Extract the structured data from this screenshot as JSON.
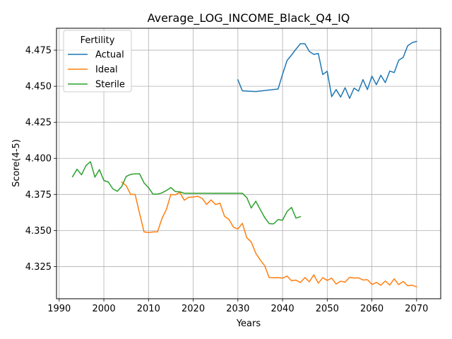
{
  "chart_data": {
    "type": "line",
    "title": "Average_LOG_INCOME_Black_Q4_IQ",
    "xlabel": "Years",
    "ylabel": "Score(4-5)",
    "xlim": [
      1989.4,
      2075.4
    ],
    "ylim": [
      4.3027,
      4.4902
    ],
    "xticks": [
      1990,
      2000,
      2010,
      2020,
      2030,
      2040,
      2050,
      2060,
      2070
    ],
    "xtick_labels": [
      "1990",
      "2000",
      "2010",
      "2020",
      "2030",
      "2040",
      "2050",
      "2060",
      "2070"
    ],
    "yticks": [
      4.325,
      4.35,
      4.375,
      4.4,
      4.425,
      4.45,
      4.475
    ],
    "ytick_labels": [
      "4.325",
      "4.350",
      "4.375",
      "4.400",
      "4.425",
      "4.450",
      "4.475"
    ],
    "grid": true,
    "legend": {
      "title": "Fertility",
      "placement": "upper-left"
    },
    "series": [
      {
        "name": "Actual",
        "color": "#1f77b4",
        "x": [
          2030,
          2031,
          2034,
          2039,
          2040,
          2041,
          2042,
          2043,
          2044,
          2045,
          2046,
          2047,
          2048,
          2049,
          2050,
          2051,
          2052,
          2053,
          2054,
          2055,
          2056,
          2057,
          2058,
          2059,
          2060,
          2061,
          2062,
          2063,
          2064,
          2065,
          2066,
          2067,
          2068,
          2069,
          2070
        ],
        "y": [
          4.4545,
          4.4468,
          4.4463,
          4.4481,
          4.4583,
          4.4678,
          4.4716,
          4.4757,
          4.4795,
          4.4795,
          4.4741,
          4.4721,
          4.4727,
          4.4581,
          4.4604,
          4.4428,
          4.4477,
          4.4425,
          4.449,
          4.4416,
          4.4487,
          4.4466,
          4.4546,
          4.4477,
          4.457,
          4.4511,
          4.4576,
          4.4525,
          4.4605,
          4.4595,
          4.468,
          4.47,
          4.478,
          4.4802,
          4.4811
        ]
      },
      {
        "name": "Ideal",
        "color": "#ff7f0e",
        "x": [
          2004,
          2005,
          2006,
          2007,
          2008,
          2009,
          2010,
          2011,
          2012,
          2013,
          2014,
          2015,
          2016,
          2017,
          2018,
          2019,
          2020,
          2021,
          2022,
          2023,
          2024,
          2025,
          2026,
          2027,
          2028,
          2029,
          2030,
          2031,
          2032,
          2033,
          2034,
          2035,
          2036,
          2037,
          2038,
          2039,
          2040,
          2041,
          2042,
          2043,
          2044,
          2045,
          2046,
          2047,
          2048,
          2049,
          2050,
          2051,
          2052,
          2053,
          2054,
          2055,
          2056,
          2057,
          2058,
          2059,
          2060,
          2061,
          2062,
          2063,
          2064,
          2065,
          2066,
          2067,
          2068,
          2069,
          2070
        ],
        "y": [
          4.3836,
          4.3811,
          4.375,
          4.375,
          4.3618,
          4.349,
          4.3486,
          4.349,
          4.349,
          4.3582,
          4.3647,
          4.375,
          4.3747,
          4.3765,
          4.371,
          4.3731,
          4.3732,
          4.3737,
          4.3723,
          4.3681,
          4.3712,
          4.368,
          4.369,
          4.3599,
          4.3577,
          4.3523,
          4.351,
          4.355,
          4.345,
          4.342,
          4.3343,
          4.3296,
          4.3256,
          4.3174,
          4.3172,
          4.3173,
          4.317,
          4.3184,
          4.3152,
          4.3156,
          4.314,
          4.3174,
          4.3145,
          4.3193,
          4.3135,
          4.3173,
          4.3154,
          4.317,
          4.3129,
          4.3149,
          4.3142,
          4.3175,
          4.3171,
          4.3172,
          4.3157,
          4.3159,
          4.3126,
          4.314,
          4.3121,
          4.315,
          4.3122,
          4.3165,
          4.3125,
          4.3147,
          4.3117,
          4.3121,
          4.311
        ]
      },
      {
        "name": "Sterile",
        "color": "#2ca02c",
        "x": [
          1993,
          1994,
          1995,
          1996,
          1997,
          1998,
          1999,
          2000,
          2001,
          2002,
          2003,
          2004,
          2005,
          2006,
          2007,
          2008,
          2009,
          2010,
          2011,
          2012,
          2013,
          2014,
          2015,
          2016,
          2017,
          2018,
          2019,
          2020,
          2021,
          2022,
          2023,
          2024,
          2025,
          2026,
          2027,
          2028,
          2029,
          2030,
          2031,
          2032,
          2033,
          2034,
          2035,
          2036,
          2037,
          2038,
          2039,
          2040,
          2041,
          2042,
          2043,
          2044
        ],
        "y": [
          4.3873,
          4.3925,
          4.3886,
          4.395,
          4.3977,
          4.387,
          4.3922,
          4.3847,
          4.3836,
          4.3789,
          4.3772,
          4.3805,
          4.3875,
          4.3889,
          4.3893,
          4.3893,
          4.383,
          4.3797,
          4.3752,
          4.3752,
          4.3761,
          4.3777,
          4.3798,
          4.377,
          4.3768,
          4.3758,
          4.3758,
          4.3758,
          4.3758,
          4.3758,
          4.3758,
          4.3758,
          4.3758,
          4.3758,
          4.3758,
          4.3758,
          4.3758,
          4.3758,
          4.3758,
          4.3728,
          4.3656,
          4.3703,
          4.3646,
          4.359,
          4.3548,
          4.3546,
          4.3576,
          4.3571,
          4.3632,
          4.366,
          4.3586,
          4.3596
        ]
      }
    ]
  }
}
